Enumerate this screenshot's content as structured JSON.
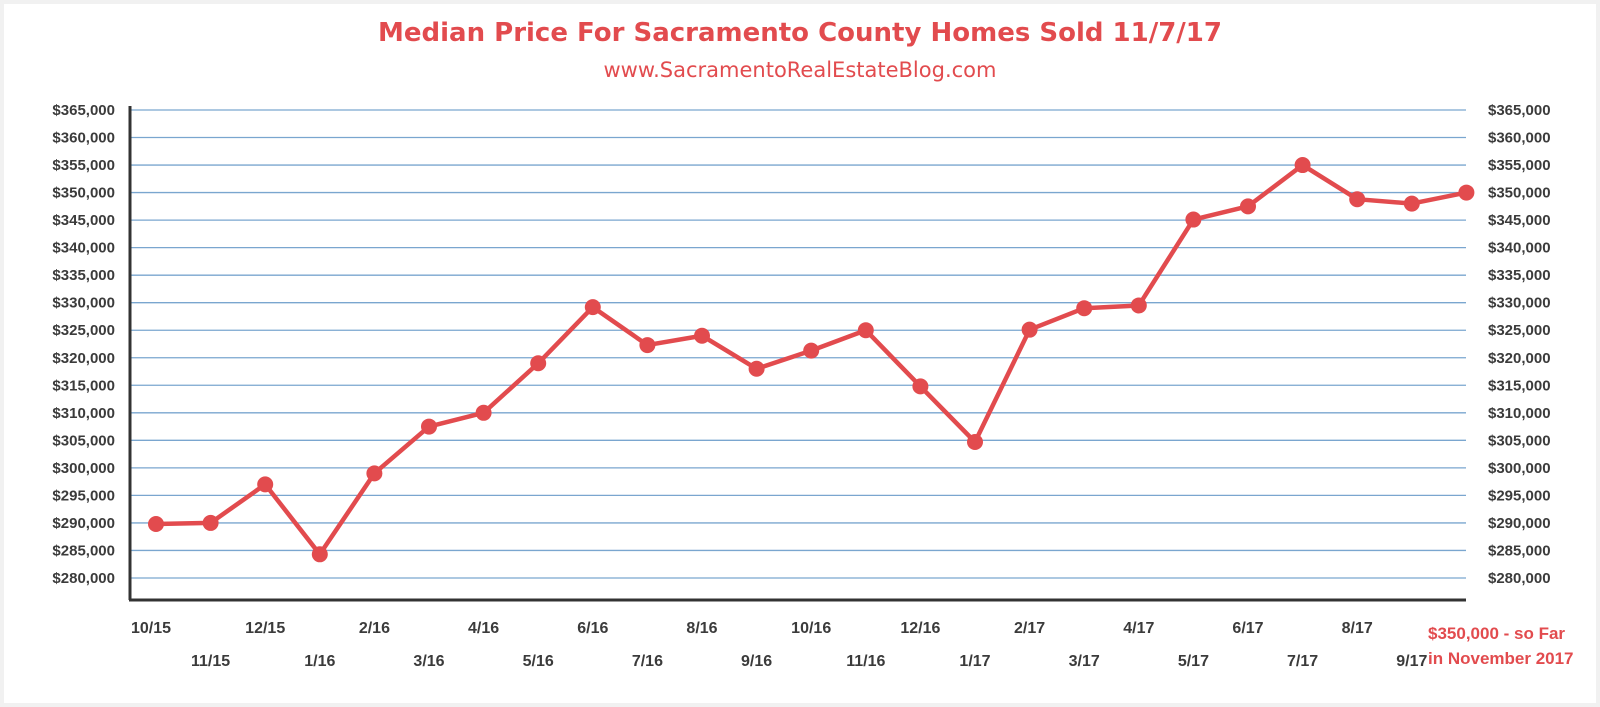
{
  "header": {
    "title": "Median Price For Sacramento County Homes Sold 11/7/17",
    "subtitle": "www.SacramentoRealEstateBlog.com"
  },
  "annotation": {
    "line1": "$350,000 - so Far",
    "line2": "in November 2017"
  },
  "colors": {
    "series": "#e24b4e",
    "grid": "#7aa6cf",
    "axis": "#333333",
    "text": "#3b3b3b"
  },
  "chart_data": {
    "type": "line",
    "title": "Median Price For Sacramento County Homes Sold 11/7/17",
    "subtitle": "www.SacramentoRealEstateBlog.com",
    "xlabel": "",
    "ylabel": "",
    "ylim": [
      276000,
      365000
    ],
    "grid": true,
    "ytick_values": [
      280000,
      285000,
      290000,
      295000,
      300000,
      305000,
      310000,
      315000,
      320000,
      325000,
      330000,
      335000,
      340000,
      345000,
      350000,
      355000,
      360000,
      365000
    ],
    "ytick_labels": [
      "$280,000",
      "$285,000",
      "$290,000",
      "$295,000",
      "$300,000",
      "$305,000",
      "$310,000",
      "$315,000",
      "$320,000",
      "$325,000",
      "$330,000",
      "$335,000",
      "$340,000",
      "$345,000",
      "$350,000",
      "$355,000",
      "$360,000",
      "$365,000"
    ],
    "categories": [
      "10/15",
      "11/15",
      "12/15",
      "1/16",
      "2/16",
      "3/16",
      "4/16",
      "5/16",
      "6/16",
      "7/16",
      "8/16",
      "9/16",
      "10/16",
      "11/16",
      "12/16",
      "1/17",
      "2/17",
      "3/17",
      "4/17",
      "5/17",
      "6/17",
      "7/17",
      "8/17",
      "9/17",
      "11/17"
    ],
    "tick_labels": [
      "10/15",
      "11/15",
      "12/15",
      "1/16",
      "2/16",
      "3/16",
      "4/16",
      "5/16",
      "6/16",
      "7/16",
      "8/16",
      "9/16",
      "10/16",
      "11/16",
      "12/16",
      "1/17",
      "2/17",
      "3/17",
      "4/17",
      "5/17",
      "6/17",
      "7/17",
      "8/17",
      "9/17"
    ],
    "values": [
      289800,
      290000,
      297000,
      284300,
      299000,
      307500,
      310000,
      319000,
      329200,
      322300,
      324000,
      318000,
      321300,
      325000,
      314800,
      304700,
      325100,
      329000,
      329500,
      345100,
      347500,
      355000,
      348800,
      348000,
      350000
    ]
  }
}
